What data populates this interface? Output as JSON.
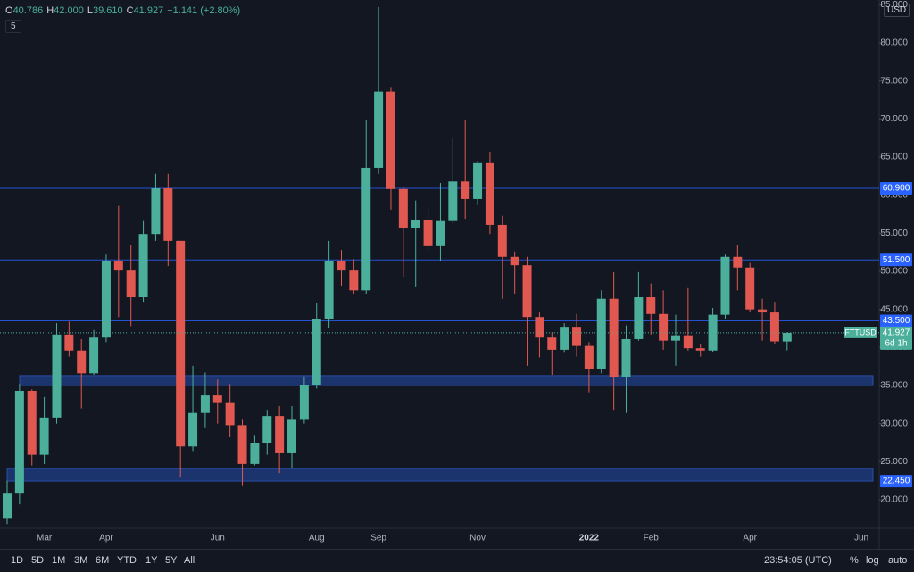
{
  "header": {
    "ohlc": [
      {
        "key": "O",
        "value": "40.786"
      },
      {
        "key": "H",
        "value": "42.000"
      },
      {
        "key": "L",
        "value": "39.610"
      },
      {
        "key": "C",
        "value": "41.927"
      }
    ],
    "change": "+1.141 (+2.80%)",
    "indicator": "5",
    "currency": "USD"
  },
  "chart_data": {
    "type": "candlestick",
    "up_color": "#4caf9b",
    "down_color": "#e0584f",
    "grid": false,
    "categories": [
      null,
      null,
      null,
      "Mar",
      null,
      null,
      null,
      null,
      "Apr",
      null,
      null,
      null,
      null,
      null,
      null,
      null,
      null,
      "Jun",
      null,
      null,
      null,
      null,
      null,
      null,
      null,
      "Aug",
      null,
      null,
      null,
      null,
      "Sep",
      null,
      null,
      null,
      null,
      null,
      null,
      null,
      "Nov",
      null,
      null,
      null,
      null,
      null,
      null,
      null,
      null,
      "2022",
      null,
      null,
      null,
      null,
      "Feb",
      null,
      null,
      null,
      null,
      null,
      null,
      null,
      "Apr",
      null,
      null,
      null,
      null,
      null,
      null,
      null,
      null,
      "Jun",
      null
    ],
    "open": [
      17.5,
      20.8,
      34.3,
      25.9,
      30.8,
      41.7,
      39.6,
      36.6,
      41.3,
      51.3,
      50.1,
      46.6,
      54.9,
      60.9,
      54.0,
      27.0,
      31.4,
      33.7,
      32.7,
      29.8,
      24.7,
      27.5,
      31.0,
      26.1,
      30.5,
      35.0,
      43.7,
      51.4,
      50.1,
      47.5,
      63.6,
      73.6,
      60.8,
      55.7,
      56.8,
      53.3,
      56.6,
      61.8,
      59.5,
      64.2,
      56.1,
      51.9,
      50.8,
      44.0,
      41.3,
      39.7,
      42.6,
      40.2,
      37.2,
      46.4,
      36.1,
      41.1,
      46.6,
      44.4,
      40.9,
      41.6,
      39.9,
      39.6,
      44.3,
      51.9,
      50.5,
      45.0,
      44.6,
      40.786,
      null,
      null,
      null,
      null,
      null,
      null,
      null
    ],
    "high": [
      22.5,
      35.2,
      34.5,
      33.5,
      43.2,
      43.4,
      41.1,
      42.3,
      52.2,
      58.6,
      53.4,
      56.6,
      62.8,
      62.8,
      54.0,
      37.6,
      36.7,
      35.8,
      35.2,
      30.5,
      28.4,
      31.7,
      32.3,
      32.3,
      36.2,
      45.8,
      54.0,
      52.8,
      51.6,
      69.8,
      84.7,
      74.1,
      61.0,
      59.3,
      58.4,
      61.6,
      67.5,
      69.8,
      64.5,
      65.7,
      57.3,
      52.6,
      51.9,
      44.6,
      42.0,
      43.2,
      44.4,
      40.7,
      47.5,
      49.9,
      42.9,
      49.9,
      48.4,
      47.5,
      44.3,
      47.8,
      40.5,
      45.2,
      52.2,
      53.4,
      51.1,
      46.4,
      46.0,
      42.0,
      null,
      null,
      null,
      null,
      null,
      null,
      null
    ],
    "low": [
      16.8,
      19.4,
      24.5,
      24.7,
      30.0,
      38.8,
      32.0,
      36.4,
      40.7,
      44.0,
      42.8,
      46.0,
      54.0,
      50.7,
      22.9,
      26.4,
      29.4,
      30.0,
      28.2,
      21.8,
      24.5,
      25.9,
      23.5,
      24.1,
      30.0,
      34.6,
      42.5,
      48.1,
      47.0,
      47.0,
      62.8,
      58.1,
      49.3,
      47.9,
      52.6,
      51.4,
      56.3,
      56.9,
      58.7,
      54.9,
      46.4,
      47.0,
      37.6,
      38.7,
      36.4,
      39.3,
      38.8,
      34.1,
      36.6,
      31.7,
      31.4,
      40.9,
      41.7,
      39.7,
      37.6,
      39.6,
      38.8,
      39.4,
      43.7,
      47.5,
      44.6,
      40.9,
      40.5,
      39.61,
      null,
      null,
      null,
      null,
      null,
      null,
      null
    ],
    "close": [
      20.8,
      34.3,
      25.9,
      30.8,
      41.7,
      39.6,
      36.6,
      41.3,
      51.3,
      50.1,
      46.6,
      54.9,
      60.9,
      54.0,
      27.0,
      31.4,
      33.7,
      32.7,
      29.8,
      24.7,
      27.5,
      31.0,
      26.1,
      30.5,
      35.0,
      43.7,
      51.4,
      50.1,
      47.5,
      63.6,
      73.6,
      60.8,
      55.7,
      56.8,
      53.3,
      56.6,
      61.8,
      59.5,
      64.2,
      56.1,
      51.9,
      50.8,
      44.0,
      41.3,
      39.7,
      42.6,
      40.2,
      37.2,
      46.4,
      36.1,
      41.1,
      46.6,
      44.4,
      40.9,
      41.6,
      39.9,
      39.6,
      44.3,
      51.9,
      50.5,
      45.0,
      44.6,
      40.8,
      41.927,
      null,
      null,
      null,
      null,
      null,
      null,
      null
    ],
    "ylim": [
      16.25,
      85.625
    ],
    "yticks": [
      {
        "value": 20,
        "label": "20.000"
      },
      {
        "value": 25,
        "label": "25.000"
      },
      {
        "value": 30,
        "label": "30.000"
      },
      {
        "value": 35,
        "label": "35.000"
      },
      {
        "value": 40,
        "label": "40.000"
      },
      {
        "value": 45,
        "label": "45.000"
      },
      {
        "value": 50,
        "label": "50.000"
      },
      {
        "value": 55,
        "label": "55.000"
      },
      {
        "value": 60,
        "label": "60.000"
      },
      {
        "value": 65,
        "label": "65.000"
      },
      {
        "value": 70,
        "label": "70.000"
      },
      {
        "value": 75,
        "label": "75.000"
      },
      {
        "value": 80,
        "label": "80.000"
      },
      {
        "value": 85,
        "label": "85.000"
      }
    ],
    "lines": [
      {
        "value": 60.9,
        "label": "60.900"
      },
      {
        "value": 51.5,
        "label": "51.500"
      },
      {
        "value": 43.5,
        "label": "43.500"
      }
    ],
    "zones": [
      {
        "low": 35.0,
        "high": 36.3
      },
      {
        "low": 22.45,
        "high": 24.1,
        "label": "22.450"
      }
    ],
    "current": {
      "value": 41.927,
      "symbol": "FTTUSD",
      "label": "41.927",
      "countdown": "6d 1h"
    }
  },
  "toolbar": {
    "ranges": [
      "1D",
      "5D",
      "1M",
      "3M",
      "6M",
      "YTD",
      "1Y",
      "5Y",
      "All"
    ],
    "time": "23:54:05 (UTC)",
    "scale": [
      "%",
      "log",
      "auto"
    ]
  }
}
